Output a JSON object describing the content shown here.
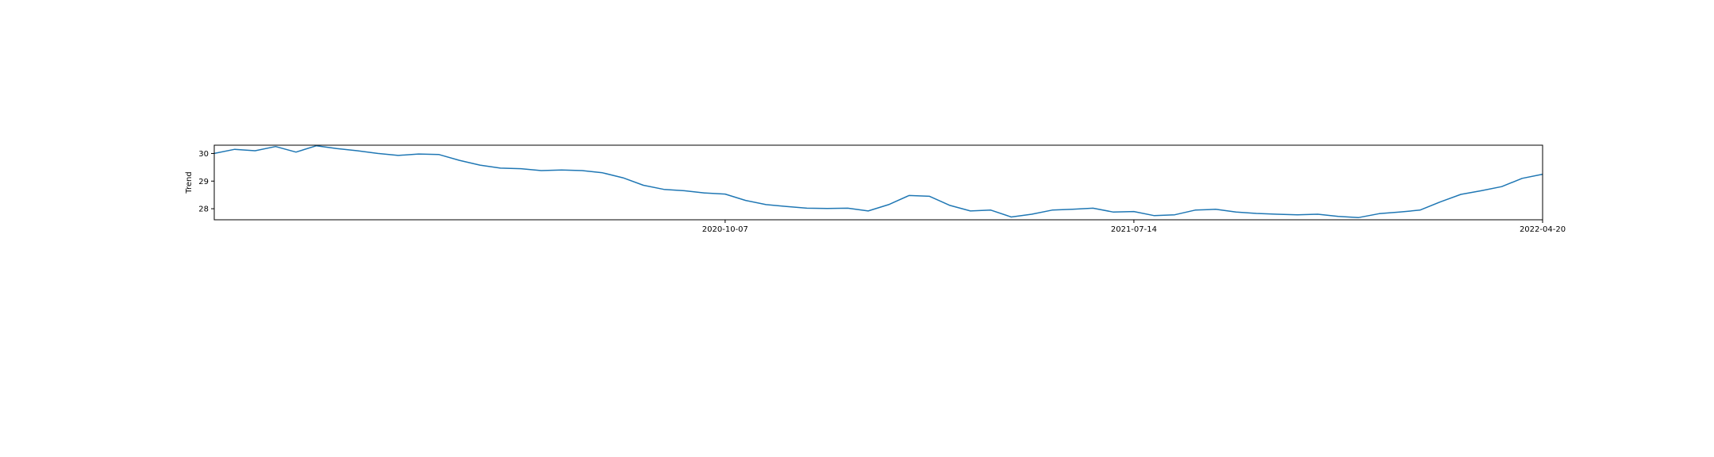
{
  "chart_data": {
    "type": "line",
    "ylabel": "Trend",
    "xlabel": "",
    "title": "",
    "grid": false,
    "line_color": "#1f77b4",
    "xlim": [
      "2019-10-23",
      "2022-04-20"
    ],
    "ylim": [
      27.6,
      30.3
    ],
    "xticks": [
      "2020-10-07",
      "2021-07-14",
      "2022-04-20"
    ],
    "yticks": [
      28,
      29,
      30
    ],
    "x": [
      "2019-10-23",
      "2019-11-06",
      "2019-11-20",
      "2019-12-04",
      "2019-12-18",
      "2020-01-01",
      "2020-01-15",
      "2020-01-29",
      "2020-02-12",
      "2020-02-26",
      "2020-03-11",
      "2020-03-25",
      "2020-04-08",
      "2020-04-22",
      "2020-05-06",
      "2020-05-20",
      "2020-06-03",
      "2020-06-17",
      "2020-07-01",
      "2020-07-15",
      "2020-07-29",
      "2020-08-12",
      "2020-08-26",
      "2020-09-09",
      "2020-09-23",
      "2020-10-07",
      "2020-10-21",
      "2020-11-04",
      "2020-11-18",
      "2020-12-02",
      "2020-12-16",
      "2020-12-30",
      "2021-01-13",
      "2021-01-27",
      "2021-02-10",
      "2021-02-24",
      "2021-03-10",
      "2021-03-24",
      "2021-04-07",
      "2021-04-21",
      "2021-05-05",
      "2021-05-19",
      "2021-06-02",
      "2021-06-16",
      "2021-06-30",
      "2021-07-14",
      "2021-07-28",
      "2021-08-11",
      "2021-08-25",
      "2021-09-08",
      "2021-09-22",
      "2021-10-06",
      "2021-10-20",
      "2021-11-03",
      "2021-11-17",
      "2021-12-01",
      "2021-12-15",
      "2021-12-29",
      "2022-01-12",
      "2022-01-26",
      "2022-02-09",
      "2022-02-23",
      "2022-03-09",
      "2022-03-23",
      "2022-04-06",
      "2022-04-20"
    ],
    "y": [
      30.0,
      30.15,
      30.1,
      30.25,
      30.05,
      30.28,
      30.18,
      30.1,
      30.0,
      29.93,
      29.98,
      29.96,
      29.75,
      29.58,
      29.47,
      29.45,
      29.38,
      29.4,
      29.38,
      29.3,
      29.12,
      28.85,
      28.7,
      28.65,
      28.57,
      28.53,
      28.3,
      28.15,
      28.08,
      28.02,
      28.01,
      28.02,
      27.92,
      28.15,
      28.48,
      28.45,
      28.12,
      27.92,
      27.95,
      27.7,
      27.8,
      27.95,
      27.98,
      28.02,
      27.88,
      27.9,
      27.75,
      27.78,
      27.95,
      27.98,
      27.88,
      27.83,
      27.8,
      27.78,
      27.8,
      27.72,
      27.68,
      27.82,
      27.88,
      27.95,
      28.25,
      28.52,
      28.65,
      28.8,
      29.1,
      29.25
    ]
  }
}
